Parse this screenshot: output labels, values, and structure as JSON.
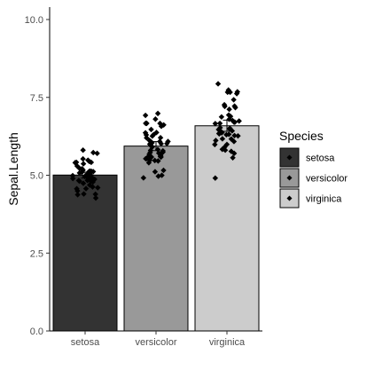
{
  "chart_data": {
    "type": "bar",
    "categories": [
      "setosa",
      "versicolor",
      "virginica"
    ],
    "values": [
      5.006,
      5.936,
      6.588
    ],
    "error_bars": [
      {
        "low": 4.91,
        "high": 5.1
      },
      {
        "low": 5.79,
        "high": 6.08
      },
      {
        "low": 6.41,
        "high": 6.77
      }
    ],
    "bar_colors": [
      "#333333",
      "#999999",
      "#cccccc"
    ],
    "ylabel": "Sepal.Length",
    "xlabel": "",
    "ylim": [
      0,
      10
    ],
    "yticks": [
      0,
      2.5,
      5,
      7.5,
      10
    ],
    "ytick_labels": [
      "0.0",
      "2.5",
      "5.0",
      "7.5",
      "10.0"
    ],
    "legend": {
      "title": "Species",
      "entries": [
        "setosa",
        "versicolor",
        "virginica"
      ],
      "placement": "right"
    },
    "grid": false,
    "points": [
      [
        5.1,
        4.9,
        4.7,
        4.6,
        5.0,
        5.4,
        4.6,
        5.0,
        4.4,
        4.9,
        5.4,
        4.8,
        4.8,
        4.3,
        5.8,
        5.7,
        5.4,
        5.1,
        5.7,
        5.1,
        5.4,
        5.1,
        4.6,
        5.1,
        4.8,
        5.0,
        5.0,
        5.2,
        5.2,
        4.7,
        4.8,
        5.4,
        5.2,
        5.5,
        4.9,
        5.0,
        5.5,
        4.9,
        4.4,
        5.1,
        5.0,
        4.5,
        4.4,
        5.0,
        5.1,
        4.8,
        5.1,
        4.6,
        5.3,
        5.0
      ],
      [
        7.0,
        6.4,
        6.9,
        5.5,
        6.5,
        5.7,
        6.3,
        4.9,
        6.6,
        5.2,
        5.0,
        5.9,
        6.0,
        6.1,
        5.6,
        6.7,
        5.6,
        5.8,
        6.2,
        5.6,
        5.9,
        6.1,
        6.3,
        6.1,
        6.4,
        6.6,
        6.8,
        6.7,
        6.0,
        5.7,
        5.5,
        5.5,
        5.8,
        6.0,
        5.4,
        6.0,
        6.7,
        6.3,
        5.6,
        5.5,
        5.5,
        6.1,
        5.8,
        5.0,
        5.6,
        5.7,
        5.7,
        6.2,
        5.1,
        5.7
      ],
      [
        6.3,
        5.8,
        7.1,
        6.3,
        6.5,
        7.6,
        4.9,
        7.3,
        6.7,
        7.2,
        6.5,
        6.4,
        6.8,
        5.7,
        5.8,
        6.4,
        6.5,
        7.7,
        7.7,
        6.0,
        6.9,
        5.6,
        7.7,
        6.3,
        6.7,
        7.2,
        6.2,
        6.1,
        6.4,
        7.2,
        7.4,
        7.9,
        6.4,
        6.3,
        6.1,
        7.7,
        6.3,
        6.4,
        6.0,
        6.9,
        6.7,
        6.9,
        5.8,
        6.8,
        6.7,
        6.7,
        6.3,
        6.5,
        6.2,
        5.9
      ]
    ]
  }
}
